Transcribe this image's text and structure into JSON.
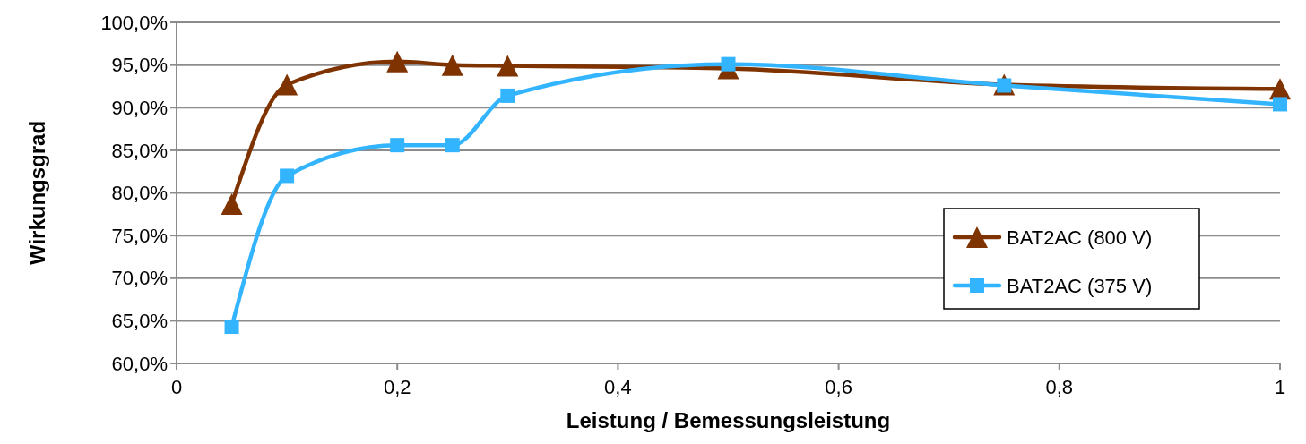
{
  "chart_data": {
    "type": "line",
    "xlabel": "Leistung / Bemessungsleistung",
    "ylabel": "Wirkungsgrad",
    "x": [
      0.05,
      0.1,
      0.2,
      0.25,
      0.3,
      0.5,
      0.75,
      1
    ],
    "series": [
      {
        "name": "BAT2AC (800 V)",
        "color": "#7f3300",
        "marker": "triangle",
        "values": [
          78.7,
          92.7,
          95.4,
          95.0,
          94.9,
          94.6,
          92.7,
          92.2
        ]
      },
      {
        "name": "BAT2AC (375 V)",
        "color": "#33b4ff",
        "marker": "square",
        "values": [
          64.3,
          82.0,
          85.6,
          85.6,
          91.4,
          95.1,
          92.6,
          90.4
        ]
      }
    ],
    "xlim": [
      0,
      1
    ],
    "ylim": [
      60,
      100
    ],
    "xticks": [
      0,
      {
        "value": 0.2,
        "label": "0,2"
      },
      {
        "value": 0.4,
        "label": "0,4"
      },
      {
        "value": 0.6,
        "label": "0,6"
      },
      {
        "value": 0.8,
        "label": "0,8"
      },
      1
    ],
    "yticks": [
      {
        "value": 60,
        "label": "60,0%"
      },
      {
        "value": 65,
        "label": "65,0%"
      },
      {
        "value": 70,
        "label": "70,0%"
      },
      {
        "value": 75,
        "label": "75,0%"
      },
      {
        "value": 80,
        "label": "80,0%"
      },
      {
        "value": 85,
        "label": "85,0%"
      },
      {
        "value": 90,
        "label": "90,0%"
      },
      {
        "value": 95,
        "label": "95,0%"
      },
      {
        "value": 100,
        "label": "100,0%"
      }
    ],
    "grid": "y",
    "legend": "right",
    "line_style": "solid"
  }
}
